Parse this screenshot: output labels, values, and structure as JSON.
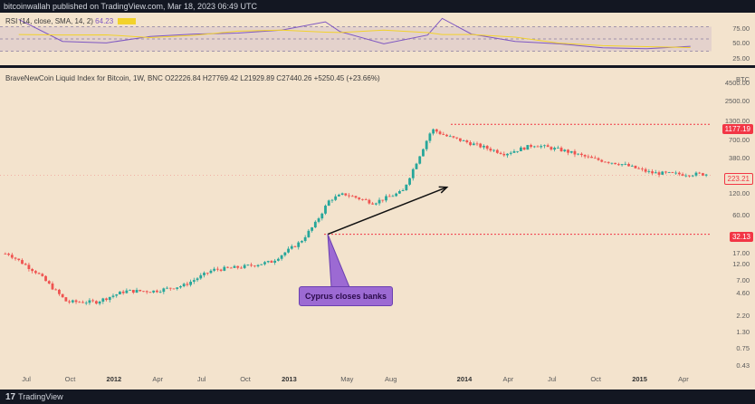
{
  "header": {
    "publisher": "bitcoinwallah published on TradingView.com, Mar 18, 2023 06:49 UTC"
  },
  "rsi_pane": {
    "legend": "RSI (14, close, SMA, 14, 2)",
    "value": "64.23",
    "levels": [
      "75.00",
      "50.00",
      "25.00"
    ],
    "line_color": "#7e57c2",
    "sma_color": "#f2d22b",
    "band_color": "#7e57c2"
  },
  "main_pane": {
    "legend": "BraveNewCoin Liquid Index for Bitcoin, 1W, BNC  O22226.84  H27769.42  L21929.89  C27440.26  +5250.45 (+23.66%)",
    "currency": "BTC",
    "price_levels": [
      "4500.00",
      "2500.00",
      "1300.00",
      "700.00",
      "380.00",
      "200.00",
      "120.00",
      "60.00",
      "32.00",
      "17.00",
      "12.00",
      "7.00",
      "4.60",
      "2.20",
      "1.30",
      "0.75",
      "0.43"
    ],
    "high_badge": "1177.19",
    "last_badge": "223.21",
    "low_badge": "32.13",
    "annotation": "Cyprus closes banks",
    "up_color": "#26a69a",
    "down_color": "#ef5350",
    "level_line_color": "#f23645"
  },
  "time_axis": {
    "labels": [
      {
        "text": "Jul",
        "bold": false
      },
      {
        "text": "Oct",
        "bold": false
      },
      {
        "text": "2012",
        "bold": true
      },
      {
        "text": "Apr",
        "bold": false
      },
      {
        "text": "Jul",
        "bold": false
      },
      {
        "text": "Oct",
        "bold": false
      },
      {
        "text": "2013",
        "bold": true
      },
      {
        "text": "May",
        "bold": false
      },
      {
        "text": "Aug",
        "bold": false
      },
      {
        "text": "2014",
        "bold": true
      },
      {
        "text": "Apr",
        "bold": false
      },
      {
        "text": "Jul",
        "bold": false
      },
      {
        "text": "Oct",
        "bold": false
      },
      {
        "text": "2015",
        "bold": true
      },
      {
        "text": "Apr",
        "bold": false
      }
    ]
  },
  "footer": {
    "brand": "TradingView",
    "logo_icon": "tradingview-logo-icon"
  },
  "chart_data": {
    "type": "candlestick",
    "title": "BraveNewCoin Liquid Index for Bitcoin, 1W, BNC",
    "ylabel": "BTC",
    "yscale": "log",
    "ylim": [
      0.43,
      4500
    ],
    "x_tick_labels": [
      "Jul",
      "Oct",
      "2012",
      "Apr",
      "Jul",
      "Oct",
      "2013",
      "May",
      "Aug",
      "2014",
      "Apr",
      "Jul",
      "Oct",
      "2015",
      "Apr"
    ],
    "price_trend": {
      "x": [
        "2011-06",
        "2011-08",
        "2011-10",
        "2011-12",
        "2012-02",
        "2012-04",
        "2012-06",
        "2012-08",
        "2012-10",
        "2012-12",
        "2013-02",
        "2013-03",
        "2013-04",
        "2013-05",
        "2013-07",
        "2013-09",
        "2013-11",
        "2013-12",
        "2014-02",
        "2014-04",
        "2014-06",
        "2014-08",
        "2014-10",
        "2014-12",
        "2015-02",
        "2015-04"
      ],
      "close": [
        17,
        9,
        3.5,
        3.5,
        5,
        5,
        6,
        10,
        11,
        13,
        25,
        45,
        100,
        120,
        90,
        130,
        1000,
        800,
        600,
        450,
        600,
        500,
        380,
        320,
        240,
        230
      ]
    },
    "horizontal_levels": [
      1177.19,
      32.13
    ],
    "current_price": 223.21,
    "rsi": {
      "name": "RSI (14, close, SMA, 14, 2)",
      "last": 64.23,
      "bands": [
        25,
        50,
        75
      ],
      "x": [
        "2011-06",
        "2011-09",
        "2011-12",
        "2012-03",
        "2012-06",
        "2012-09",
        "2012-12",
        "2013-03",
        "2013-04",
        "2013-07",
        "2013-10",
        "2013-11",
        "2014-01",
        "2014-04",
        "2014-07",
        "2014-10",
        "2015-01",
        "2015-04"
      ],
      "values": [
        90,
        45,
        42,
        55,
        60,
        62,
        68,
        85,
        65,
        40,
        58,
        92,
        60,
        45,
        40,
        32,
        30,
        35
      ]
    }
  }
}
